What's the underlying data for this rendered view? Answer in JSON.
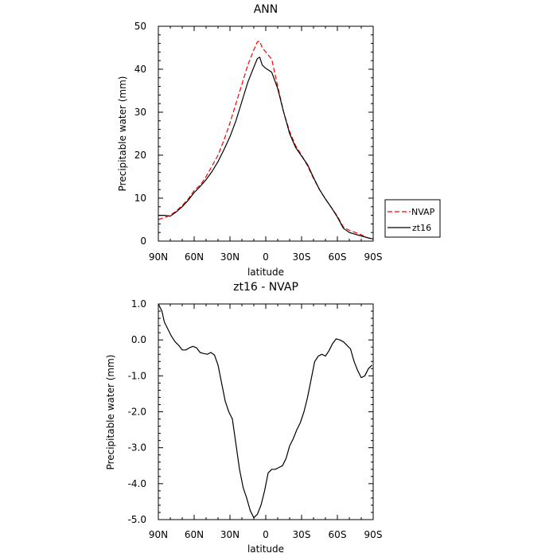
{
  "chart_data": [
    {
      "type": "line",
      "title": "ANN",
      "xlabel": "latitude",
      "ylabel": "Precipitable water (mm)",
      "xlim": [
        -90,
        90
      ],
      "ylim": [
        0,
        50
      ],
      "xticks": [
        {
          "value": -90,
          "label": "90N"
        },
        {
          "value": -60,
          "label": "60N"
        },
        {
          "value": -30,
          "label": "30N"
        },
        {
          "value": 0,
          "label": "0"
        },
        {
          "value": 30,
          "label": "30S"
        },
        {
          "value": 60,
          "label": "60S"
        },
        {
          "value": 90,
          "label": "90S"
        }
      ],
      "yticks": [
        {
          "value": 0,
          "label": "0"
        },
        {
          "value": 10,
          "label": "10"
        },
        {
          "value": 20,
          "label": "20"
        },
        {
          "value": 30,
          "label": "30"
        },
        {
          "value": 40,
          "label": "40"
        },
        {
          "value": 50,
          "label": "50"
        }
      ],
      "legend_position": "right",
      "series": [
        {
          "name": "NVAP",
          "color": "#ff0000",
          "dash": "dashed",
          "x": [
            -90,
            -85,
            -80,
            -75,
            -70,
            -65,
            -60,
            -55,
            -50,
            -45,
            -40,
            -35,
            -30,
            -25,
            -20,
            -15,
            -10,
            -7,
            -5,
            -3,
            0,
            5,
            10,
            15,
            20,
            25,
            30,
            35,
            40,
            45,
            50,
            55,
            60,
            65,
            70,
            75,
            80,
            85,
            90
          ],
          "y": [
            5.0,
            5.5,
            6.0,
            7.0,
            8.3,
            9.8,
            11.8,
            13.0,
            15.0,
            17.5,
            20.0,
            23.5,
            27.5,
            32.0,
            36.5,
            41.0,
            44.5,
            46.4,
            46.5,
            45.0,
            44.0,
            42.3,
            36.0,
            30.0,
            25.5,
            22.2,
            20.0,
            17.5,
            14.6,
            12.0,
            9.8,
            7.8,
            5.8,
            3.3,
            2.5,
            2.0,
            1.5,
            0.8,
            0.4
          ]
        },
        {
          "name": "zt16",
          "color": "#000000",
          "dash": "solid",
          "x": [
            -90,
            -85,
            -80,
            -75,
            -70,
            -65,
            -60,
            -55,
            -50,
            -45,
            -40,
            -35,
            -30,
            -25,
            -20,
            -15,
            -10,
            -7,
            -5,
            -3,
            0,
            5,
            10,
            15,
            20,
            25,
            30,
            35,
            40,
            45,
            50,
            55,
            60,
            65,
            70,
            75,
            80,
            85,
            90
          ],
          "y": [
            6.0,
            6.0,
            5.8,
            6.8,
            8.0,
            9.5,
            11.3,
            12.7,
            14.3,
            16.2,
            18.5,
            21.3,
            24.3,
            28.0,
            32.5,
            37.0,
            40.5,
            42.5,
            42.8,
            41.0,
            40.2,
            39.3,
            35.5,
            30.0,
            25.0,
            21.8,
            19.8,
            17.8,
            14.8,
            12.0,
            9.8,
            7.8,
            5.6,
            3.0,
            2.0,
            1.6,
            1.2,
            0.8,
            0.5
          ]
        }
      ]
    },
    {
      "type": "line",
      "title": "zt16 - NVAP",
      "xlabel": "latitude",
      "ylabel": "Precipitable water (mm)",
      "xlim": [
        -90,
        90
      ],
      "ylim": [
        -5,
        1
      ],
      "xticks": [
        {
          "value": -90,
          "label": "90N"
        },
        {
          "value": -60,
          "label": "60N"
        },
        {
          "value": -30,
          "label": "30N"
        },
        {
          "value": 0,
          "label": "0"
        },
        {
          "value": 30,
          "label": "30S"
        },
        {
          "value": 60,
          "label": "60S"
        },
        {
          "value": 90,
          "label": "90S"
        }
      ],
      "yticks": [
        {
          "value": -5,
          "label": "-5.0"
        },
        {
          "value": -4,
          "label": "-4.0"
        },
        {
          "value": -3,
          "label": "-3.0"
        },
        {
          "value": -2,
          "label": "-2.0"
        },
        {
          "value": -1,
          "label": "-1.0"
        },
        {
          "value": 0,
          "label": "0.0"
        },
        {
          "value": 1,
          "label": "1.0"
        }
      ],
      "series": [
        {
          "color": "#000000",
          "dash": "solid",
          "x": [
            -90,
            -87,
            -85,
            -82,
            -79,
            -76,
            -73,
            -70,
            -67,
            -64,
            -61,
            -58,
            -55,
            -52,
            -49,
            -46,
            -43,
            -40,
            -37,
            -34,
            -31,
            -28,
            -25,
            -22,
            -19,
            -16,
            -13,
            -10,
            -7,
            -4,
            -1,
            2,
            5,
            8,
            11,
            14,
            17,
            20,
            23,
            26,
            29,
            32,
            35,
            38,
            41,
            44,
            47,
            50,
            53,
            56,
            59,
            62,
            65,
            68,
            71,
            74,
            77,
            80,
            83,
            86,
            89
          ],
          "y": [
            1.0,
            0.8,
            0.5,
            0.3,
            0.1,
            -0.05,
            -0.15,
            -0.28,
            -0.28,
            -0.22,
            -0.18,
            -0.22,
            -0.35,
            -0.38,
            -0.4,
            -0.35,
            -0.42,
            -0.7,
            -1.2,
            -1.7,
            -2.0,
            -2.2,
            -2.9,
            -3.6,
            -4.1,
            -4.4,
            -4.75,
            -4.95,
            -4.85,
            -4.6,
            -4.2,
            -3.7,
            -3.6,
            -3.6,
            -3.55,
            -3.5,
            -3.3,
            -2.95,
            -2.75,
            -2.5,
            -2.3,
            -2.0,
            -1.6,
            -1.1,
            -0.6,
            -0.45,
            -0.4,
            -0.45,
            -0.3,
            -0.1,
            0.03,
            0.0,
            -0.05,
            -0.15,
            -0.25,
            -0.6,
            -0.85,
            -1.05,
            -1.0,
            -0.8,
            -0.7
          ]
        }
      ]
    }
  ]
}
